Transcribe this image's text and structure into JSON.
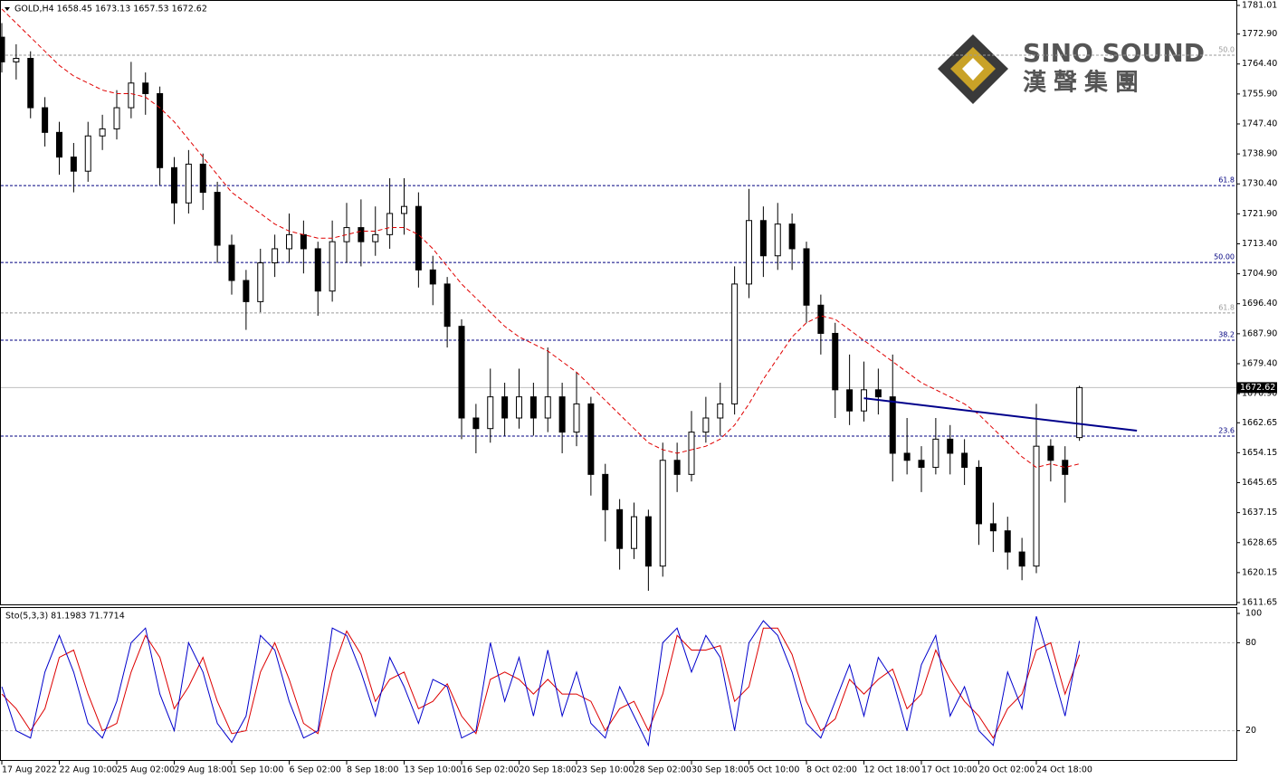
{
  "chart_data": {
    "type": "candlestick",
    "header": "GOLD,H4  1658.45 1673.13 1657.53 1672.62",
    "indicator_header": "Sto(5,3,3) 81.1983 71.7714",
    "logo": {
      "name": "SINO SOUND",
      "chinese": "漢聲集團"
    },
    "ylim": [
      1611.14,
      1782.55
    ],
    "yticks": [
      1781.01,
      {
        "value": 1772.9,
        "label": "1772.90"
      },
      {
        "value": 1764.4,
        "label": "1764.40"
      },
      {
        "value": 1755.9,
        "label": "1755.90"
      },
      {
        "value": 1747.4,
        "label": "1747.40"
      },
      {
        "value": 1738.9,
        "label": "1738.90"
      },
      {
        "value": 1730.4,
        "label": "1730.40"
      },
      {
        "value": 1721.9,
        "label": "1721.90"
      },
      {
        "value": 1713.4,
        "label": "1713.40"
      },
      {
        "value": 1704.9,
        "label": "1704.90"
      },
      {
        "value": 1696.4,
        "label": "1696.40"
      },
      {
        "value": 1687.9,
        "label": "1687.90"
      },
      {
        "value": 1679.4,
        "label": "1679.40"
      },
      {
        "value": 1670.9,
        "label": "1670.90"
      },
      1662.65,
      1654.15,
      1645.65,
      1637.15,
      1628.65,
      1620.15,
      1611.65
    ],
    "xticks": [
      {
        "value": 0,
        "label": "17 Aug 2022"
      },
      {
        "value": 4,
        "label": "22 Aug 10:00"
      },
      {
        "value": 8,
        "label": "25 Aug 02:00"
      },
      {
        "value": 12,
        "label": "29 Aug 18:00"
      },
      {
        "value": 16,
        "label": "1 Sep 10:00"
      },
      {
        "value": 20,
        "label": "6 Sep 02:00"
      },
      {
        "value": 24,
        "label": "8 Sep 18:00"
      },
      {
        "value": 28,
        "label": "13 Sep 10:00"
      },
      {
        "value": 32,
        "label": "16 Sep 02:00"
      },
      {
        "value": 36,
        "label": "20 Sep 18:00"
      },
      {
        "value": 40,
        "label": "23 Sep 10:00"
      },
      {
        "value": 44,
        "label": "28 Sep 02:00"
      },
      {
        "value": 48,
        "label": "30 Sep 18:00"
      },
      {
        "value": 52,
        "label": "5 Oct 10:00"
      },
      {
        "value": 56,
        "label": "8 Oct 02:00"
      },
      {
        "value": 60,
        "label": "12 Oct 18:00"
      },
      {
        "value": 64,
        "label": "17 Oct 10:00"
      },
      {
        "value": 68,
        "label": "20 Oct 02:00"
      },
      {
        "value": 72,
        "label": "24 Oct 18:00"
      }
    ],
    "last_price": 1672.62,
    "levels": [
      {
        "price": 1766.9,
        "text": "50.0",
        "color": "#9a9a9a"
      },
      {
        "price": 1729.9,
        "text": "61.8",
        "color": "#000080"
      },
      {
        "price": 1708.1,
        "text": "50.00",
        "color": "#000080"
      },
      {
        "price": 1693.8,
        "text": "61.8",
        "color": "#9a9a9a"
      },
      {
        "price": 1686.07,
        "text": "38.2",
        "color": "#000080"
      },
      {
        "price": 1658.86,
        "text": "23.6",
        "color": "#000080"
      }
    ],
    "trendline": {
      "x": [
        60,
        79
      ],
      "y": [
        1669.6,
        1660.4
      ],
      "color": "#00008b"
    },
    "ma_color": "#e00000",
    "ohlc": [
      [
        1772,
        1776,
        1762,
        1765
      ],
      [
        1765,
        1770,
        1760,
        1766
      ],
      [
        1766,
        1768,
        1749,
        1752
      ],
      [
        1752,
        1755,
        1741,
        1745
      ],
      [
        1745,
        1748,
        1733,
        1738
      ],
      [
        1738,
        1742,
        1728,
        1734
      ],
      [
        1734,
        1748,
        1731,
        1744
      ],
      [
        1744,
        1750,
        1740,
        1746
      ],
      [
        1746,
        1757,
        1743,
        1752
      ],
      [
        1752,
        1765,
        1749,
        1759
      ],
      [
        1759,
        1762,
        1750,
        1756
      ],
      [
        1756,
        1758,
        1730,
        1735
      ],
      [
        1735,
        1738,
        1719,
        1725
      ],
      [
        1725,
        1740,
        1722,
        1736
      ],
      [
        1736,
        1739,
        1723,
        1728
      ],
      [
        1728,
        1731,
        1708,
        1713
      ],
      [
        1713,
        1716,
        1699,
        1703
      ],
      [
        1703,
        1706,
        1689,
        1697
      ],
      [
        1697,
        1712,
        1694,
        1708
      ],
      [
        1708,
        1716,
        1704,
        1712
      ],
      [
        1712,
        1722,
        1708,
        1716
      ],
      [
        1716,
        1720,
        1705,
        1712
      ],
      [
        1712,
        1714,
        1693,
        1700
      ],
      [
        1700,
        1720,
        1697,
        1714
      ],
      [
        1714,
        1725,
        1708,
        1718
      ],
      [
        1718,
        1726,
        1707,
        1714
      ],
      [
        1714,
        1724,
        1710,
        1716
      ],
      [
        1716,
        1732,
        1712,
        1722
      ],
      [
        1722,
        1732,
        1716,
        1724
      ],
      [
        1724,
        1728,
        1701,
        1706
      ],
      [
        1706,
        1710,
        1696,
        1702
      ],
      [
        1702,
        1704,
        1684,
        1690
      ],
      [
        1690,
        1692,
        1658,
        1664
      ],
      [
        1664,
        1668,
        1654,
        1661
      ],
      [
        1661,
        1678,
        1657,
        1670
      ],
      [
        1670,
        1674,
        1659,
        1664
      ],
      [
        1664,
        1678,
        1661,
        1670
      ],
      [
        1670,
        1674,
        1659,
        1664
      ],
      [
        1664,
        1684,
        1660,
        1670
      ],
      [
        1670,
        1674,
        1654,
        1660
      ],
      [
        1660,
        1677,
        1656,
        1668
      ],
      [
        1668,
        1670,
        1642,
        1648
      ],
      [
        1648,
        1651,
        1629,
        1638
      ],
      [
        1638,
        1641,
        1621,
        1627
      ],
      [
        1627,
        1640,
        1624,
        1636
      ],
      [
        1636,
        1638,
        1615,
        1622
      ],
      [
        1622,
        1657,
        1619,
        1652
      ],
      [
        1652,
        1657,
        1643,
        1648
      ],
      [
        1648,
        1666,
        1646,
        1660
      ],
      [
        1660,
        1670,
        1657,
        1664
      ],
      [
        1664,
        1674,
        1659,
        1668
      ],
      [
        1668,
        1707,
        1665,
        1702
      ],
      [
        1702,
        1729,
        1698,
        1720
      ],
      [
        1720,
        1724,
        1704,
        1710
      ],
      [
        1710,
        1725,
        1706,
        1719
      ],
      [
        1719,
        1722,
        1706,
        1712
      ],
      [
        1712,
        1714,
        1691,
        1696
      ],
      [
        1696,
        1699,
        1682,
        1688
      ],
      [
        1688,
        1691,
        1664,
        1672
      ],
      [
        1672,
        1682,
        1662,
        1666
      ],
      [
        1666,
        1680,
        1663,
        1672
      ],
      [
        1672,
        1678,
        1665,
        1670
      ],
      [
        1670,
        1682,
        1646,
        1654
      ],
      [
        1654,
        1664,
        1648,
        1652
      ],
      [
        1652,
        1656,
        1643,
        1650
      ],
      [
        1650,
        1664,
        1648,
        1658
      ],
      [
        1658,
        1662,
        1648,
        1654
      ],
      [
        1654,
        1658,
        1645,
        1650
      ],
      [
        1650,
        1652,
        1628,
        1634
      ],
      [
        1634,
        1640,
        1626,
        1632
      ],
      [
        1632,
        1636,
        1621,
        1626
      ],
      [
        1626,
        1630,
        1618,
        1622
      ],
      [
        1622,
        1668,
        1620,
        1656
      ],
      [
        1656,
        1658,
        1646,
        1652
      ],
      [
        1652,
        1656,
        1640,
        1648
      ],
      [
        1658.45,
        1673.13,
        1657.53,
        1672.62
      ]
    ],
    "ma": [
      1780,
      1776,
      1772,
      1768,
      1764,
      1761,
      1759,
      1757,
      1756,
      1756,
      1755,
      1752,
      1748,
      1743,
      1738,
      1733,
      1728,
      1725,
      1722,
      1719,
      1717,
      1716,
      1715,
      1715,
      1716,
      1717,
      1717,
      1718,
      1718,
      1716,
      1712,
      1707,
      1702,
      1698,
      1694,
      1690,
      1687,
      1685,
      1683,
      1680,
      1677,
      1673,
      1669,
      1665,
      1661,
      1657,
      1655,
      1654,
      1655,
      1656,
      1658,
      1662,
      1668,
      1675,
      1681,
      1687,
      1691,
      1693,
      1692,
      1689,
      1686,
      1683,
      1680,
      1677,
      1674,
      1672,
      1670,
      1668,
      1665,
      1661,
      1657,
      1653,
      1650,
      1651,
      1650,
      1651
    ],
    "stoch": {
      "ylim": [
        0,
        100
      ],
      "yticks": [
        100,
        80,
        20
      ],
      "levels": [
        80,
        20
      ],
      "series": [
        {
          "color": "#0000cc",
          "values": [
            50,
            20,
            15,
            60,
            85,
            60,
            25,
            15,
            40,
            80,
            90,
            45,
            20,
            80,
            60,
            25,
            12,
            30,
            85,
            75,
            40,
            15,
            20,
            90,
            85,
            60,
            30,
            70,
            50,
            25,
            55,
            50,
            15,
            20,
            80,
            40,
            70,
            30,
            75,
            30,
            60,
            25,
            15,
            50,
            30,
            10,
            80,
            90,
            60,
            85,
            70,
            20,
            80,
            95,
            85,
            60,
            25,
            15,
            40,
            65,
            30,
            70,
            55,
            20,
            65,
            85,
            30,
            50,
            20,
            10,
            60,
            35,
            98,
            65,
            30,
            81.1983
          ]
        },
        {
          "color": "#dd0000",
          "values": [
            45,
            35,
            20,
            35,
            70,
            75,
            45,
            20,
            25,
            60,
            85,
            70,
            35,
            50,
            70,
            40,
            18,
            20,
            60,
            80,
            55,
            25,
            18,
            60,
            88,
            72,
            40,
            55,
            60,
            35,
            40,
            52,
            30,
            18,
            55,
            60,
            55,
            45,
            55,
            45,
            45,
            40,
            20,
            35,
            40,
            20,
            45,
            85,
            75,
            75,
            78,
            40,
            50,
            90,
            90,
            72,
            40,
            20,
            28,
            55,
            45,
            55,
            62,
            35,
            45,
            75,
            55,
            40,
            30,
            15,
            35,
            45,
            75,
            80,
            45,
            71.7714
          ]
        }
      ]
    }
  }
}
